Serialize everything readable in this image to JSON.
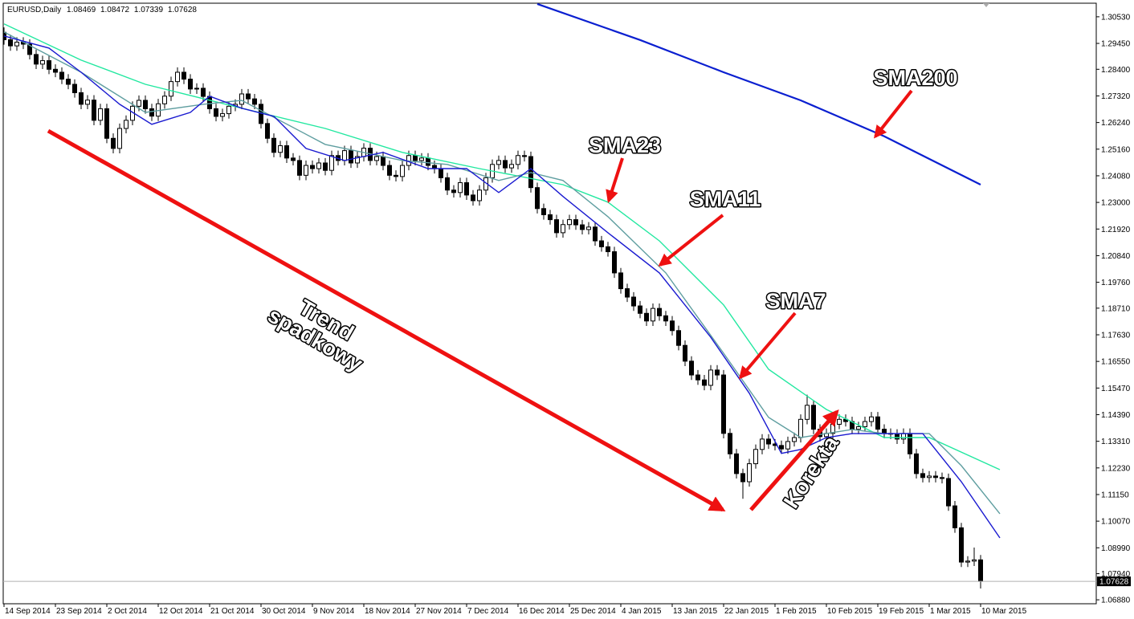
{
  "chart_data": {
    "type": "candlestick",
    "title": "EURUSD,Daily",
    "info_values": [
      1.08469,
      1.08472,
      1.07339,
      1.07628
    ],
    "last_price": 1.07628,
    "trend_label": [
      "Trend",
      "spadkowy"
    ],
    "correction_label": "Korekta",
    "categories": [
      "14 Sep 2014",
      null,
      null,
      null,
      null,
      null,
      null,
      null,
      "23 Sep 2014",
      null,
      null,
      null,
      null,
      null,
      null,
      null,
      "2 Oct 2014",
      null,
      null,
      null,
      null,
      null,
      null,
      null,
      "12 Oct 2014",
      null,
      null,
      null,
      null,
      null,
      null,
      null,
      "21 Oct 2014",
      null,
      null,
      null,
      null,
      null,
      null,
      null,
      "30 Oct 2014",
      null,
      null,
      null,
      null,
      null,
      null,
      null,
      "9 Nov 2014",
      null,
      null,
      null,
      null,
      null,
      null,
      null,
      "18 Nov 2014",
      null,
      null,
      null,
      null,
      null,
      null,
      null,
      "27 Nov 2014",
      null,
      null,
      null,
      null,
      null,
      null,
      null,
      "7 Dec 2014",
      null,
      null,
      null,
      null,
      null,
      null,
      null,
      "16 Dec 2014",
      null,
      null,
      null,
      null,
      null,
      null,
      null,
      "25 Dec 2014",
      null,
      null,
      null,
      null,
      null,
      null,
      null,
      "4 Jan 2015",
      null,
      null,
      null,
      null,
      null,
      null,
      null,
      "13 Jan 2015",
      null,
      null,
      null,
      null,
      null,
      null,
      null,
      "22 Jan 2015",
      null,
      null,
      null,
      null,
      null,
      null,
      null,
      "1 Feb 2015",
      null,
      null,
      null,
      null,
      null,
      null,
      null,
      "10 Feb 2015",
      null,
      null,
      null,
      null,
      null,
      null,
      null,
      "19 Feb 2015",
      null,
      null,
      null,
      null,
      null,
      null,
      null,
      "1 Mar 2015",
      null,
      null,
      null,
      null,
      null,
      null,
      null,
      "10 Mar 2015"
    ],
    "open": [
      1.299,
      1.296,
      1.2935,
      1.295,
      1.2942,
      1.29,
      1.2861,
      1.2875,
      1.284,
      1.2828,
      1.28,
      1.2779,
      1.2745,
      1.2698,
      1.2715,
      1.2633,
      1.268,
      1.256,
      1.2519,
      1.26,
      1.2633,
      1.269,
      1.2714,
      1.268,
      1.265,
      1.27,
      1.2731,
      1.279,
      1.2828,
      1.28,
      1.276,
      1.2763,
      1.273,
      1.268,
      1.2649,
      1.266,
      1.269,
      1.2698,
      1.274,
      1.272,
      1.2698,
      1.262,
      1.256,
      1.2503,
      1.253,
      1.248,
      1.247,
      1.241,
      1.245,
      1.2437,
      1.246,
      1.243,
      1.249,
      1.247,
      1.251,
      1.246,
      1.2486,
      1.252,
      1.247,
      1.2486,
      1.245,
      1.241,
      1.2405,
      1.245,
      1.249,
      1.247,
      1.248,
      1.245,
      1.2437,
      1.24,
      1.235,
      1.234,
      1.238,
      1.233,
      1.2307,
      1.235,
      1.24,
      1.2454,
      1.247,
      1.244,
      1.2454,
      1.249,
      1.2486,
      1.236,
      1.2275,
      1.225,
      1.223,
      1.2177,
      1.221,
      1.223,
      1.2209,
      1.219,
      1.22,
      1.2144,
      1.212,
      1.21,
      1.2014,
      1.195,
      1.1916,
      1.188,
      1.185,
      1.1819,
      1.187,
      1.184,
      1.1819,
      1.178,
      1.172,
      1.1656,
      1.16,
      1.158,
      1.1558,
      1.162,
      1.16,
      1.1363,
      1.128,
      1.12,
      1.1167,
      1.124,
      1.1298,
      1.134,
      1.132,
      1.1314,
      1.13,
      1.133,
      1.1346,
      1.142,
      1.1477,
      1.138,
      1.135,
      1.1363,
      1.14,
      1.142,
      1.1411,
      1.138,
      1.139,
      1.1411,
      1.143,
      1.138,
      1.1363,
      1.136,
      1.134,
      1.1363,
      1.128,
      1.12,
      1.1184,
      1.119,
      1.1184,
      1.118,
      1.1069,
      1.098,
      1.0841,
      1.0845,
      1.085
    ],
    "high": [
      1.301,
      1.298,
      1.297,
      1.297,
      1.2962,
      1.292,
      1.2895,
      1.2895,
      1.286,
      1.2848,
      1.282,
      1.2799,
      1.2765,
      1.2735,
      1.2735,
      1.27,
      1.27,
      1.258,
      1.262,
      1.2653,
      1.271,
      1.2734,
      1.2734,
      1.27,
      1.272,
      1.2751,
      1.281,
      1.2848,
      1.2848,
      1.282,
      1.2783,
      1.2783,
      1.275,
      1.27,
      1.268,
      1.271,
      1.2718,
      1.276,
      1.276,
      1.274,
      1.2718,
      1.264,
      1.258,
      1.255,
      1.255,
      1.25,
      1.249,
      1.247,
      1.247,
      1.248,
      1.248,
      1.251,
      1.251,
      1.253,
      1.253,
      1.2506,
      1.254,
      1.254,
      1.2506,
      1.2506,
      1.247,
      1.243,
      1.247,
      1.251,
      1.251,
      1.25,
      1.25,
      1.247,
      1.2457,
      1.242,
      1.237,
      1.24,
      1.24,
      1.235,
      1.237,
      1.242,
      1.2474,
      1.249,
      1.249,
      1.2474,
      1.251,
      1.251,
      1.2506,
      1.238,
      1.2295,
      1.227,
      1.225,
      1.223,
      1.225,
      1.225,
      1.2229,
      1.222,
      1.222,
      1.2164,
      1.214,
      1.212,
      1.2034,
      1.197,
      1.1936,
      1.19,
      1.187,
      1.189,
      1.189,
      1.186,
      1.1839,
      1.18,
      1.174,
      1.1676,
      1.162,
      1.16,
      1.164,
      1.164,
      1.162,
      1.1383,
      1.13,
      1.122,
      1.126,
      1.1318,
      1.136,
      1.136,
      1.134,
      1.1334,
      1.135,
      1.1366,
      1.144,
      1.152,
      1.1497,
      1.14,
      1.1383,
      1.142,
      1.144,
      1.144,
      1.1431,
      1.141,
      1.1431,
      1.145,
      1.145,
      1.14,
      1.1383,
      1.138,
      1.1383,
      1.1383,
      1.13,
      1.122,
      1.121,
      1.121,
      1.1204,
      1.12,
      1.1089,
      1.1,
      1.0865,
      1.09,
      1.087
    ],
    "low": [
      1.294,
      1.2915,
      1.2915,
      1.2922,
      1.288,
      1.2841,
      1.2841,
      1.282,
      1.2808,
      1.278,
      1.2759,
      1.2725,
      1.2678,
      1.2678,
      1.2613,
      1.2613,
      1.254,
      1.2499,
      1.2499,
      1.258,
      1.2613,
      1.267,
      1.266,
      1.263,
      1.263,
      1.268,
      1.2711,
      1.277,
      1.278,
      1.274,
      1.274,
      1.271,
      1.266,
      1.2629,
      1.2629,
      1.264,
      1.267,
      1.2678,
      1.27,
      1.2678,
      1.26,
      1.254,
      1.2483,
      1.2483,
      1.246,
      1.245,
      1.239,
      1.239,
      1.2417,
      1.2417,
      1.241,
      1.241,
      1.245,
      1.245,
      1.244,
      1.244,
      1.2466,
      1.245,
      1.245,
      1.243,
      1.239,
      1.2385,
      1.2385,
      1.243,
      1.245,
      1.245,
      1.243,
      1.2417,
      1.238,
      1.233,
      1.232,
      1.232,
      1.231,
      1.2287,
      1.2287,
      1.233,
      1.238,
      1.2434,
      1.242,
      1.242,
      1.2434,
      1.2466,
      1.234,
      1.2255,
      1.223,
      1.221,
      1.2157,
      1.2157,
      1.219,
      1.2189,
      1.217,
      1.217,
      1.2124,
      1.21,
      1.208,
      1.1994,
      1.193,
      1.1896,
      1.186,
      1.183,
      1.1799,
      1.1799,
      1.182,
      1.1799,
      1.176,
      1.17,
      1.1636,
      1.158,
      1.156,
      1.1538,
      1.1538,
      1.158,
      1.1343,
      1.126,
      1.118,
      1.1098,
      1.1147,
      1.122,
      1.1278,
      1.13,
      1.1294,
      1.128,
      1.128,
      1.131,
      1.1326,
      1.14,
      1.136,
      1.133,
      1.133,
      1.1343,
      1.138,
      1.1391,
      1.136,
      1.136,
      1.137,
      1.1391,
      1.136,
      1.1343,
      1.134,
      1.132,
      1.132,
      1.126,
      1.118,
      1.1164,
      1.1164,
      1.1164,
      1.116,
      1.1049,
      1.096,
      1.0821,
      1.0821,
      1.0825,
      1.0734
    ],
    "close": [
      1.296,
      1.2935,
      1.295,
      1.2942,
      1.29,
      1.2861,
      1.2875,
      1.284,
      1.2828,
      1.28,
      1.2779,
      1.2745,
      1.2698,
      1.2715,
      1.2633,
      1.268,
      1.256,
      1.2519,
      1.26,
      1.2633,
      1.269,
      1.2714,
      1.268,
      1.265,
      1.27,
      1.2731,
      1.279,
      1.2828,
      1.28,
      1.276,
      1.2763,
      1.273,
      1.268,
      1.2649,
      1.266,
      1.269,
      1.2698,
      1.274,
      1.272,
      1.2698,
      1.262,
      1.256,
      1.2503,
      1.253,
      1.248,
      1.247,
      1.241,
      1.245,
      1.2437,
      1.246,
      1.243,
      1.249,
      1.247,
      1.251,
      1.246,
      1.2486,
      1.252,
      1.247,
      1.2486,
      1.245,
      1.241,
      1.2405,
      1.245,
      1.249,
      1.247,
      1.248,
      1.245,
      1.2437,
      1.24,
      1.235,
      1.234,
      1.238,
      1.233,
      1.2307,
      1.235,
      1.24,
      1.2454,
      1.247,
      1.244,
      1.2454,
      1.249,
      1.2486,
      1.236,
      1.2275,
      1.225,
      1.223,
      1.2177,
      1.221,
      1.223,
      1.2209,
      1.219,
      1.22,
      1.2144,
      1.212,
      1.21,
      1.2014,
      1.195,
      1.1916,
      1.188,
      1.185,
      1.1819,
      1.187,
      1.184,
      1.1819,
      1.178,
      1.172,
      1.1656,
      1.16,
      1.158,
      1.1558,
      1.162,
      1.16,
      1.1363,
      1.128,
      1.12,
      1.1167,
      1.124,
      1.1298,
      1.134,
      1.132,
      1.1314,
      1.13,
      1.133,
      1.1346,
      1.142,
      1.1477,
      1.138,
      1.135,
      1.1363,
      1.14,
      1.142,
      1.1411,
      1.138,
      1.139,
      1.1411,
      1.143,
      1.138,
      1.1363,
      1.136,
      1.134,
      1.1363,
      1.128,
      1.12,
      1.1184,
      1.119,
      1.1184,
      1.118,
      1.1069,
      1.098,
      1.0841,
      1.0845,
      1.085,
      1.0763
    ],
    "series": [
      {
        "name": "SMA200",
        "color": "#0a1fd0",
        "x": [
          83,
          99,
          112,
          124,
          137,
          152
        ],
        "values": [
          1.3105,
          1.2959,
          1.2828,
          1.2714,
          1.2568,
          1.2372
        ]
      },
      {
        "name": "SMA23",
        "color": "#22e8a0",
        "x": [
          0,
          12,
          22,
          37,
          50,
          62,
          74,
          87,
          94,
          102,
          112,
          119,
          128,
          137,
          144,
          155
        ],
        "values": [
          1.3024,
          1.2877,
          1.2779,
          1.2682,
          1.26,
          1.2503,
          1.2437,
          1.2372,
          1.2301,
          1.2144,
          1.1884,
          1.1623,
          1.146,
          1.1346,
          1.1346,
          1.1216
        ]
      },
      {
        "name": "SMA11",
        "color": "#5f9ea0",
        "x": [
          0,
          12,
          22,
          31,
          37,
          50,
          62,
          69,
          77,
          82,
          87,
          94,
          103,
          112,
          119,
          124,
          132,
          137,
          144,
          149,
          155
        ],
        "values": [
          1.2991,
          1.2828,
          1.2665,
          1.2698,
          1.2714,
          1.2535,
          1.247,
          1.2454,
          1.2389,
          1.2421,
          1.2389,
          1.2242,
          1.2014,
          1.1688,
          1.1428,
          1.1346,
          1.1379,
          1.1362,
          1.1362,
          1.1232,
          1.1037
        ]
      },
      {
        "name": "SMA7",
        "color": "#1a1ad0",
        "x": [
          0,
          7,
          12,
          18,
          23,
          29,
          32,
          37,
          42,
          47,
          53,
          59,
          66,
          72,
          77,
          82,
          87,
          94,
          102,
          110,
          116,
          121,
          124,
          128,
          132,
          137,
          143,
          149,
          155
        ],
        "values": [
          1.2975,
          1.2926,
          1.2828,
          1.2698,
          1.2617,
          1.2665,
          1.2731,
          1.2682,
          1.2649,
          1.2519,
          1.247,
          1.2503,
          1.2437,
          1.2437,
          1.234,
          1.2437,
          1.2324,
          1.2177,
          1.2014,
          1.1753,
          1.1526,
          1.1282,
          1.1298,
          1.1346,
          1.1362,
          1.1362,
          1.1362,
          1.1167,
          1.0939
        ]
      }
    ],
    "xlim": [
      -0.125,
      170
    ],
    "ylim": [
      1.0672,
      1.3108
    ],
    "yticks": [
      {
        "value": 1.3053,
        "label": "1.30530"
      },
      {
        "value": 1.2945,
        "label": "1.29450"
      },
      {
        "value": 1.284,
        "label": "1.28400"
      },
      {
        "value": 1.2732,
        "label": "1.27320"
      },
      {
        "value": 1.2624,
        "label": "1.26240"
      },
      {
        "value": 1.2516,
        "label": "1.25160"
      },
      {
        "value": 1.2408,
        "label": "1.24080"
      },
      {
        "value": 1.23,
        "label": "1.23000"
      },
      {
        "value": 1.2192,
        "label": "1.21920"
      },
      {
        "value": 1.2084,
        "label": "1.20840"
      },
      {
        "value": 1.1976,
        "label": "1.19760"
      },
      {
        "value": 1.1871,
        "label": "1.18710"
      },
      {
        "value": 1.1763,
        "label": "1.17630"
      },
      {
        "value": 1.1655,
        "label": "1.16550"
      },
      {
        "value": 1.1547,
        "label": "1.15470"
      },
      {
        "value": 1.1439,
        "label": "1.14390"
      },
      {
        "value": 1.1331,
        "label": "1.13310"
      },
      {
        "value": 1.1223,
        "label": "1.12230"
      },
      {
        "value": 1.1115,
        "label": "1.11150"
      },
      {
        "value": 1.1007,
        "label": "1.10070"
      },
      {
        "value": 1.0899,
        "label": "1.08990"
      },
      {
        "value": 1.0794,
        "label": "1.07940"
      },
      {
        "value": 1.0688,
        "label": "1.06880"
      }
    ]
  }
}
